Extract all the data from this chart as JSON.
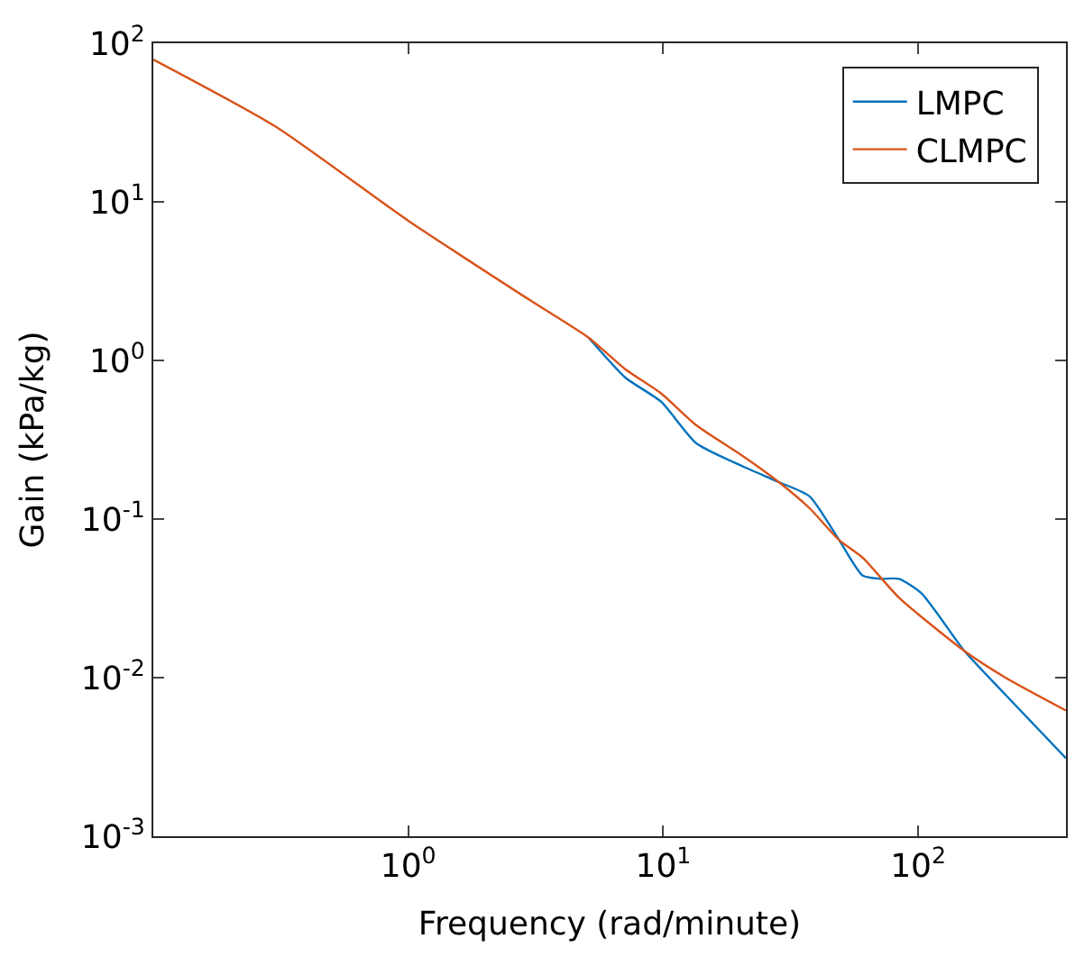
{
  "chart_data": {
    "type": "line",
    "xlabel": "Frequency (rad/minute)",
    "ylabel": "Gain (kPa/kg)",
    "log": "xy",
    "legend": "top right",
    "marker": "none",
    "line_style": "solid",
    "xlim": [
      0.1,
      380
    ],
    "ylim": [
      0.001,
      100
    ],
    "xticks": [
      {
        "value": 1,
        "label": "10$^{0}$"
      },
      {
        "value": 10,
        "label": "10$^{1}$"
      },
      {
        "value": 100,
        "label": "10$^{2}$"
      }
    ],
    "yticks": [
      {
        "value": 0.001,
        "label": "10$^{-3}$"
      },
      {
        "value": 0.01,
        "label": "10$^{-2}$"
      },
      {
        "value": 0.1,
        "label": "10$^{-1}$"
      },
      {
        "value": 1,
        "label": "10$^{0}$"
      },
      {
        "value": 10,
        "label": "10$^{1}$"
      },
      {
        "value": 100,
        "label": "10$^{2}$"
      }
    ],
    "series": [
      {
        "name": "LMPC",
        "color": "#0072bd",
        "x": [
          5.1,
          7.1,
          9.8,
          13.5,
          20.5,
          28.4,
          37.5,
          49,
          60.6,
          71,
          84,
          103,
          152,
          220,
          380
        ],
        "values": [
          1.39,
          0.78,
          0.55,
          0.3,
          0.215,
          0.171,
          0.139,
          0.0736,
          0.044,
          0.042,
          0.042,
          0.034,
          0.0147,
          0.0078,
          0.0031
        ]
      },
      {
        "name": "CLMPC",
        "color": "#d95319",
        "x": [
          0.1,
          0.3,
          1,
          3,
          5.1,
          7.1,
          9.8,
          13.5,
          20.5,
          28.4,
          37.5,
          49,
          60.6,
          84,
          152,
          220,
          380
        ],
        "values": [
          79,
          30,
          7.6,
          2.4,
          1.39,
          0.88,
          0.62,
          0.39,
          0.25,
          0.171,
          0.117,
          0.0736,
          0.057,
          0.032,
          0.0147,
          0.01,
          0.0062
        ]
      }
    ]
  }
}
